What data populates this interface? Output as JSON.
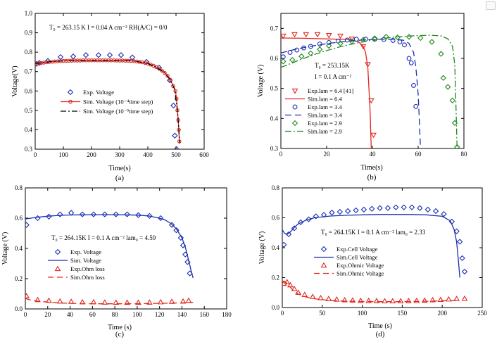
{
  "chart_data": [
    {
      "type": "line",
      "panel_label": "(a)",
      "xlabel": "Time(s)",
      "ylabel": "Voltage(V)",
      "xlim": [
        0,
        600
      ],
      "ylim": [
        0.3,
        1.0
      ],
      "xticks": [
        0,
        100,
        200,
        300,
        400,
        500,
        600
      ],
      "yticks": [
        0.3,
        0.4,
        0.5,
        0.6,
        0.7,
        0.8,
        0.9,
        1.0
      ],
      "ytick_decimals": 1,
      "annotation": "T₀ = 263.15 K    I = 0.04 A cm⁻²    RH(A/C) = 0/0",
      "series": [
        {
          "name": "Exp. Voltage",
          "kind": "marker",
          "marker": "diamond",
          "color": "#1a2fb0",
          "x": [
            5,
            15,
            45,
            90,
            135,
            180,
            225,
            265,
            305,
            345,
            395,
            440,
            478,
            491,
            496,
            502
          ],
          "y": [
            0.74,
            0.745,
            0.755,
            0.775,
            0.778,
            0.785,
            0.785,
            0.785,
            0.785,
            0.773,
            0.75,
            0.72,
            0.655,
            0.525,
            0.37,
            0.3
          ]
        },
        {
          "name": "Sim. Voltage (10⁻⁴time step)",
          "kind": "line_marker",
          "marker": "circle",
          "color": "#e0271e",
          "x": [
            0,
            10,
            20,
            30,
            40,
            50,
            60,
            70,
            80,
            90,
            100,
            110,
            120,
            130,
            140,
            150,
            160,
            170,
            180,
            190,
            200,
            210,
            220,
            230,
            240,
            250,
            260,
            270,
            280,
            290,
            300,
            310,
            320,
            330,
            340,
            350,
            360,
            370,
            380,
            390,
            400,
            410,
            420,
            430,
            440,
            450,
            460,
            470,
            480,
            490,
            498,
            502,
            505,
            508,
            510,
            512
          ],
          "y": [
            0.742,
            0.742,
            0.744,
            0.746,
            0.748,
            0.75,
            0.751,
            0.752,
            0.753,
            0.754,
            0.755,
            0.755,
            0.756,
            0.756,
            0.757,
            0.757,
            0.757,
            0.758,
            0.758,
            0.758,
            0.758,
            0.758,
            0.758,
            0.758,
            0.758,
            0.758,
            0.758,
            0.758,
            0.758,
            0.757,
            0.757,
            0.757,
            0.756,
            0.756,
            0.755,
            0.754,
            0.752,
            0.75,
            0.748,
            0.745,
            0.741,
            0.736,
            0.73,
            0.723,
            0.715,
            0.705,
            0.693,
            0.678,
            0.657,
            0.625,
            0.6,
            0.56,
            0.5,
            0.45,
            0.4,
            0.34
          ]
        },
        {
          "name": "Sim. Voltage (10⁻⁵time step)",
          "kind": "line",
          "dash": "8,3,2,3",
          "color": "#000000",
          "x": [
            0,
            50,
            100,
            150,
            200,
            250,
            300,
            350,
            400,
            430,
            460,
            480,
            495,
            505,
            510,
            513
          ],
          "y": [
            0.742,
            0.75,
            0.755,
            0.757,
            0.758,
            0.758,
            0.757,
            0.755,
            0.741,
            0.723,
            0.693,
            0.657,
            0.61,
            0.5,
            0.4,
            0.33
          ]
        }
      ]
    },
    {
      "type": "line",
      "panel_label": "(b)",
      "xlabel": "Time(s)",
      "ylabel": "Voltage (V)",
      "xlim": [
        0,
        80
      ],
      "ylim": [
        0.3,
        0.75
      ],
      "xticks": [
        0,
        20,
        40,
        60,
        80
      ],
      "yticks": [
        0.3,
        0.4,
        0.5,
        0.6,
        0.7
      ],
      "ytick_decimals": 1,
      "annotation": [
        "T₀ = 253.15K",
        "I = 0.1 A cm⁻²"
      ],
      "series": [
        {
          "name": "Exp.lam = 6.4 [41]",
          "kind": "marker",
          "marker": "triangle-down",
          "color": "#e0271e",
          "x": [
            1,
            6,
            11,
            16,
            21,
            26,
            31,
            36,
            38,
            39.5,
            40.5
          ],
          "y": [
            0.675,
            0.68,
            0.68,
            0.68,
            0.677,
            0.675,
            0.665,
            0.64,
            0.58,
            0.46,
            0.345
          ]
        },
        {
          "name": "Sim.lam = 6.4",
          "kind": "line",
          "color": "#e0271e",
          "x": [
            0,
            10,
            20,
            30,
            34,
            36,
            37,
            38,
            38.5,
            39,
            39.3,
            39.5
          ],
          "y": [
            0.668,
            0.667,
            0.665,
            0.663,
            0.655,
            0.64,
            0.62,
            0.57,
            0.5,
            0.42,
            0.35,
            0.3
          ]
        },
        {
          "name": "Exp.lam = 3.4",
          "kind": "marker",
          "marker": "circle",
          "color": "#1a2fb0",
          "x": [
            1,
            4,
            7,
            10,
            13,
            17,
            21,
            25,
            29,
            33,
            37,
            41,
            45,
            49,
            52,
            54,
            56,
            57,
            58,
            59
          ],
          "y": [
            0.605,
            0.62,
            0.628,
            0.635,
            0.64,
            0.648,
            0.653,
            0.658,
            0.661,
            0.664,
            0.664,
            0.664,
            0.663,
            0.66,
            0.655,
            0.645,
            0.6,
            0.585,
            0.51,
            0.44
          ]
        },
        {
          "name": "Sim.lam = 3.4",
          "kind": "line",
          "dash": "9,5",
          "color": "#1a2fb0",
          "x": [
            0,
            5,
            10,
            15,
            20,
            25,
            30,
            35,
            40,
            45,
            50,
            54,
            56,
            58,
            59,
            60,
            60.5,
            61
          ],
          "y": [
            0.618,
            0.628,
            0.636,
            0.643,
            0.649,
            0.654,
            0.658,
            0.661,
            0.663,
            0.664,
            0.664,
            0.66,
            0.65,
            0.62,
            0.57,
            0.48,
            0.4,
            0.3
          ]
        },
        {
          "name": "Exp.lam = 2.9",
          "kind": "marker",
          "marker": "diamond",
          "color": "#1d8a1d",
          "x": [
            1,
            5,
            9,
            13,
            17,
            21,
            26,
            31,
            36,
            41,
            46,
            51,
            56,
            61,
            66,
            70,
            71,
            73,
            75,
            76,
            77
          ],
          "y": [
            0.59,
            0.595,
            0.607,
            0.617,
            0.63,
            0.642,
            0.65,
            0.657,
            0.662,
            0.667,
            0.672,
            0.67,
            0.672,
            0.668,
            0.655,
            0.615,
            0.535,
            0.505,
            0.46,
            0.385,
            0.305
          ]
        },
        {
          "name": "Sim.lam = 2.9",
          "kind": "line",
          "dash": "9,3,2,3",
          "color": "#1d8a1d",
          "x": [
            0,
            5,
            10,
            15,
            20,
            25,
            30,
            35,
            40,
            45,
            50,
            55,
            60,
            65,
            70,
            73,
            75,
            76,
            76.5,
            77
          ],
          "y": [
            0.57,
            0.585,
            0.6,
            0.614,
            0.626,
            0.637,
            0.646,
            0.654,
            0.661,
            0.667,
            0.671,
            0.674,
            0.676,
            0.677,
            0.675,
            0.665,
            0.64,
            0.58,
            0.45,
            0.3
          ]
        }
      ]
    },
    {
      "type": "line",
      "panel_label": "(c)",
      "xlabel": "Time (s)",
      "ylabel": "Voltage (V)",
      "xlim": [
        0,
        180
      ],
      "ylim": [
        0,
        0.8
      ],
      "xticks": [
        0,
        20,
        40,
        60,
        80,
        100,
        120,
        140,
        160,
        180
      ],
      "yticks": [
        0.0,
        0.2,
        0.4,
        0.6,
        0.8
      ],
      "ytick_decimals": 1,
      "annotation": "T₀ = 264.15K    I = 0.1 A cm⁻²    lam₀ = 4.59",
      "series": [
        {
          "name": "Exp. Voltage",
          "kind": "marker",
          "marker": "diamond",
          "color": "#1a2fb0",
          "x": [
            1,
            11,
            21,
            31,
            41,
            51,
            61,
            71,
            81,
            91,
            101,
            111,
            121,
            131,
            135,
            139,
            141,
            143,
            145,
            147
          ],
          "y": [
            0.555,
            0.6,
            0.61,
            0.625,
            0.635,
            0.625,
            0.625,
            0.625,
            0.625,
            0.625,
            0.62,
            0.615,
            0.6,
            0.555,
            0.52,
            0.47,
            0.42,
            0.36,
            0.31,
            0.235
          ]
        },
        {
          "name": "Sim. Voltage",
          "kind": "line",
          "color": "#1a2fb0",
          "x": [
            0,
            5,
            10,
            20,
            30,
            40,
            50,
            60,
            70,
            80,
            90,
            100,
            110,
            120,
            125,
            130,
            135,
            140,
            143,
            146,
            149,
            150
          ],
          "y": [
            0.595,
            0.6,
            0.605,
            0.613,
            0.618,
            0.621,
            0.622,
            0.623,
            0.623,
            0.623,
            0.622,
            0.62,
            0.615,
            0.6,
            0.588,
            0.565,
            0.53,
            0.47,
            0.41,
            0.32,
            0.23,
            0.205
          ]
        },
        {
          "name": "Exp.Ohm loss",
          "kind": "marker",
          "marker": "triangle",
          "color": "#e0271e",
          "x": [
            1,
            11,
            21,
            31,
            41,
            51,
            61,
            71,
            81,
            91,
            101,
            111,
            121,
            131,
            141,
            146
          ],
          "y": [
            0.085,
            0.06,
            0.055,
            0.05,
            0.048,
            0.045,
            0.045,
            0.043,
            0.042,
            0.042,
            0.042,
            0.043,
            0.045,
            0.048,
            0.05,
            0.055
          ]
        },
        {
          "name": "Sim.Ohm loss",
          "kind": "line",
          "dash": "8,5",
          "color": "#e0271e",
          "x": [
            0,
            3,
            6,
            10,
            20,
            30,
            40,
            50,
            60,
            70,
            80,
            90,
            100,
            110,
            120,
            130,
            140,
            150
          ],
          "y": [
            0.07,
            0.062,
            0.057,
            0.052,
            0.045,
            0.04,
            0.037,
            0.035,
            0.034,
            0.034,
            0.034,
            0.034,
            0.035,
            0.036,
            0.037,
            0.038,
            0.04,
            0.043
          ]
        }
      ]
    },
    {
      "type": "line",
      "panel_label": "(d)",
      "xlabel": "Time (s)",
      "ylabel": "Voltage (V)",
      "xlim": [
        0,
        250
      ],
      "ylim": [
        0,
        0.8
      ],
      "xticks": [
        0,
        50,
        100,
        150,
        200,
        250
      ],
      "yticks": [
        0.0,
        0.2,
        0.4,
        0.6,
        0.8
      ],
      "ytick_decimals": 1,
      "annotation": "T₀ = 264.15K    I = 0.1 A cm⁻²    lam₀ = 2.33",
      "series": [
        {
          "name": "Exp.Cell Voltage",
          "kind": "marker",
          "marker": "diamond",
          "color": "#1a2fb0",
          "x": [
            2,
            8,
            15,
            23,
            33,
            42,
            52,
            62,
            72,
            82,
            92,
            102,
            112,
            122,
            132,
            142,
            152,
            162,
            172,
            182,
            192,
            202,
            212,
            218,
            222,
            225,
            228
          ],
          "y": [
            0.42,
            0.49,
            0.53,
            0.57,
            0.59,
            0.61,
            0.62,
            0.635,
            0.64,
            0.645,
            0.65,
            0.655,
            0.66,
            0.665,
            0.665,
            0.67,
            0.67,
            0.67,
            0.665,
            0.655,
            0.645,
            0.625,
            0.575,
            0.51,
            0.44,
            0.33,
            0.24
          ]
        },
        {
          "name": "Sim.Cell Voltage",
          "kind": "line",
          "color": "#1a2fb0",
          "x": [
            0,
            3,
            6,
            10,
            15,
            20,
            30,
            40,
            60,
            80,
            100,
            120,
            140,
            160,
            180,
            200,
            210,
            215,
            218,
            220,
            222
          ],
          "y": [
            0.52,
            0.495,
            0.49,
            0.505,
            0.535,
            0.56,
            0.585,
            0.6,
            0.612,
            0.617,
            0.62,
            0.622,
            0.622,
            0.622,
            0.62,
            0.61,
            0.58,
            0.52,
            0.44,
            0.33,
            0.2
          ]
        },
        {
          "name": "Exp.Ohmic Voltage",
          "kind": "marker",
          "marker": "triangle",
          "color": "#e0271e",
          "x": [
            2,
            6,
            10,
            15,
            20,
            28,
            38,
            48,
            58,
            68,
            78,
            88,
            98,
            108,
            118,
            128,
            138,
            148,
            158,
            168,
            178,
            188,
            198,
            208,
            218,
            228
          ],
          "y": [
            0.16,
            0.17,
            0.15,
            0.125,
            0.1,
            0.085,
            0.072,
            0.064,
            0.058,
            0.054,
            0.05,
            0.048,
            0.046,
            0.045,
            0.044,
            0.043,
            0.043,
            0.043,
            0.044,
            0.045,
            0.047,
            0.05,
            0.052,
            0.055,
            0.058,
            0.06
          ]
        },
        {
          "name": "Sim.Ohmic Voltage",
          "kind": "line",
          "dash": "8,5",
          "color": "#e0271e",
          "x": [
            0,
            3,
            6,
            10,
            15,
            20,
            30,
            40,
            50,
            60,
            80,
            100,
            120,
            140,
            160,
            180,
            200,
            220
          ],
          "y": [
            0.175,
            0.175,
            0.16,
            0.135,
            0.108,
            0.09,
            0.07,
            0.059,
            0.052,
            0.047,
            0.042,
            0.04,
            0.039,
            0.039,
            0.04,
            0.042,
            0.045,
            0.05
          ]
        }
      ]
    }
  ]
}
